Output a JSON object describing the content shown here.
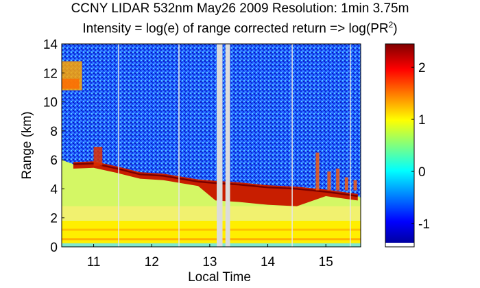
{
  "chart_data": {
    "type": "heatmap",
    "title": "CCNY LIDAR 532nm May26 2009 Resolution: 1min 3.75m",
    "subtitle": {
      "before": "Intensity = log(e) of range corrected return => log(PR",
      "sup": "2",
      "after": ")"
    },
    "xlabel": "Local Time",
    "ylabel": "Range (km)",
    "xlim": [
      10.45,
      15.6
    ],
    "ylim": [
      0,
      14
    ],
    "xticks": [
      11,
      12,
      13,
      14,
      15
    ],
    "yticks": [
      0,
      2,
      4,
      6,
      8,
      10,
      12,
      14
    ],
    "colorbar": {
      "range": [
        -1.45,
        2.45
      ],
      "ticks": [
        -1,
        0,
        1,
        2
      ],
      "colormap": "jet"
    },
    "gap_lines": [
      11.43,
      12.47,
      14.42,
      15.42
    ],
    "missing_blocks": [
      [
        13.12,
        13.22
      ],
      [
        13.27,
        13.35
      ]
    ],
    "cloud_base_km": [
      [
        10.65,
        5.7
      ],
      [
        11.0,
        5.75
      ],
      [
        11.4,
        5.4
      ],
      [
        11.8,
        5.0
      ],
      [
        12.2,
        4.9
      ],
      [
        12.5,
        4.7
      ],
      [
        12.8,
        4.5
      ],
      [
        13.1,
        4.4
      ],
      [
        13.5,
        4.3
      ],
      [
        14.0,
        4.1
      ],
      [
        14.5,
        4.0
      ],
      [
        15.0,
        3.8
      ],
      [
        15.55,
        3.5
      ]
    ],
    "colors": {
      "surface": "#ffef00",
      "boundary_layer": "#d4f765",
      "clear_sky": "#1f61ff",
      "cloud": "#c81e00",
      "missing": "#dcdcdc"
    }
  }
}
